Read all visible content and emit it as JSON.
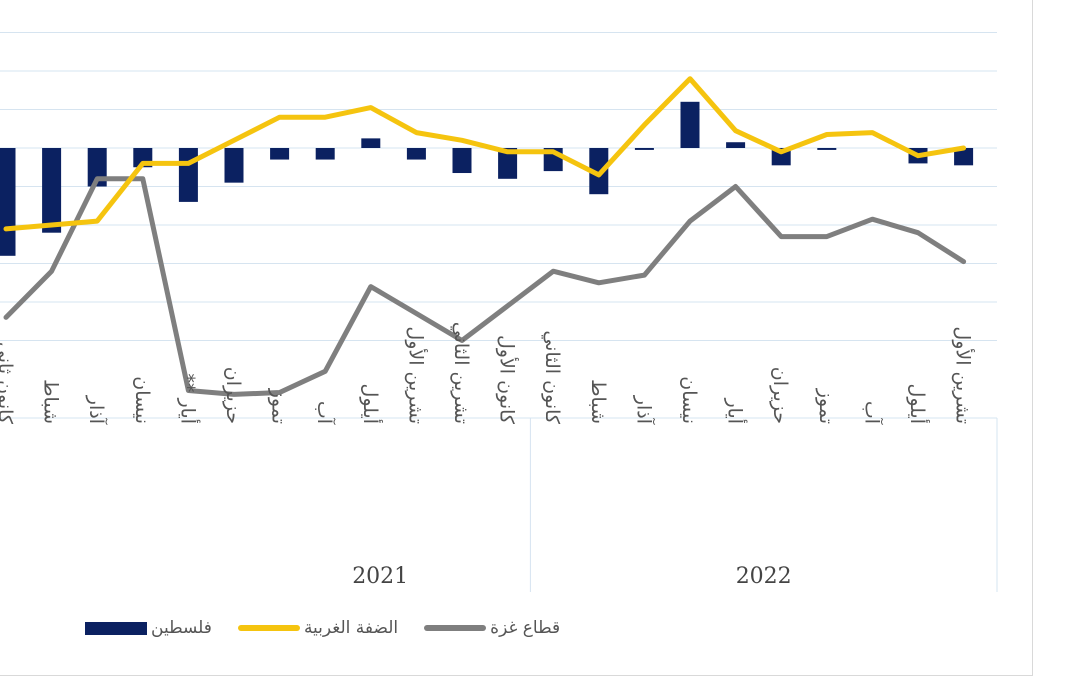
{
  "chart_data": {
    "type": "bar+line",
    "title": "",
    "years": [
      "2021",
      "2022"
    ],
    "categories": [
      "كانون ثاني",
      "شباط",
      "آذار",
      "نيسان",
      "أيار **",
      "حزيران",
      "تموز",
      "آب",
      "أيلول",
      "تشرين الأول",
      "تشرين الثاني",
      "كانون الأول",
      "كانون الثاني",
      "شباط",
      "آذار",
      "نيسان",
      "أيار",
      "حزيران",
      "تموز",
      "آب",
      "أيلول",
      "تشرين الأول"
    ],
    "year_of_category": [
      0,
      0,
      0,
      0,
      0,
      0,
      0,
      0,
      0,
      0,
      0,
      0,
      1,
      1,
      1,
      1,
      1,
      1,
      1,
      1,
      1,
      1
    ],
    "ylim": [
      -7,
      3.8
    ],
    "gridlines": [
      3,
      2,
      1,
      0,
      -1,
      -2,
      -3,
      -4,
      -5
    ],
    "series": [
      {
        "name": "فلسطين",
        "type": "bar",
        "color": "#0b2161",
        "values": [
          -2.8,
          -2.2,
          -1.0,
          -0.5,
          -1.4,
          -0.9,
          -0.3,
          -0.3,
          0.25,
          -0.3,
          -0.65,
          -0.8,
          -0.6,
          -1.2,
          -0.05,
          1.2,
          0.15,
          -0.45,
          -0.05,
          0.0,
          -0.4,
          -0.45
        ]
      },
      {
        "name": "الضفة الغربية",
        "type": "line",
        "color": "#f5c40f",
        "values": [
          -2.1,
          -2.0,
          -1.9,
          -0.4,
          -0.4,
          0.2,
          0.8,
          0.8,
          1.05,
          0.4,
          0.2,
          -0.1,
          -0.1,
          -0.7,
          0.6,
          1.8,
          0.45,
          -0.1,
          0.35,
          0.4,
          -0.2,
          0.0
        ]
      },
      {
        "name": "قطاع غزة",
        "type": "line",
        "color": "#7f7f7f",
        "values": [
          -4.4,
          -3.2,
          -0.8,
          -0.8,
          -6.3,
          -6.4,
          -6.35,
          -5.8,
          -3.6,
          -4.3,
          -5.0,
          -4.1,
          -3.2,
          -3.5,
          -3.3,
          -1.9,
          -1.0,
          -2.3,
          -2.3,
          -1.85,
          -2.2,
          -2.95
        ]
      }
    ],
    "legend": [
      "فلسطين",
      "الضفة الغربية",
      "قطاع غزة"
    ],
    "legend_position": "bottom-left"
  }
}
